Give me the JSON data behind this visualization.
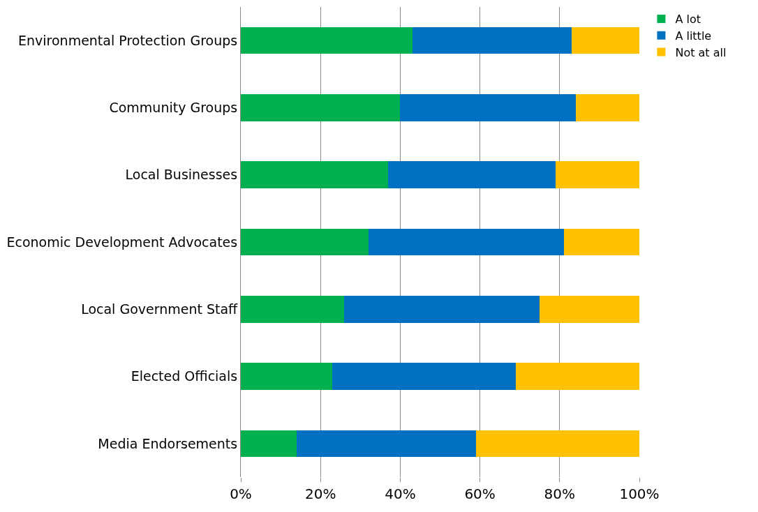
{
  "chart_data": {
    "type": "bar",
    "orientation": "horizontal",
    "stacked": true,
    "categories": [
      "Environmental Protection Groups",
      "Community Groups",
      "Local Businesses",
      "Economic Development Advocates",
      "Local Government Staff",
      "Elected Officials",
      "Media Endorsements"
    ],
    "series": [
      {
        "name": "A lot",
        "color": "#00b050",
        "values": [
          43,
          40,
          37,
          32,
          26,
          23,
          14
        ]
      },
      {
        "name": "A little",
        "color": "#0070c0",
        "values": [
          40,
          44,
          42,
          49,
          49,
          46,
          45
        ]
      },
      {
        "name": "Not at all",
        "color": "#ffc000",
        "values": [
          17,
          16,
          21,
          19,
          25,
          31,
          41
        ]
      }
    ],
    "xlim": [
      0,
      100
    ],
    "xticks": [
      {
        "value": 0,
        "label": "0%"
      },
      {
        "value": 20,
        "label": "20%"
      },
      {
        "value": 40,
        "label": "40%"
      },
      {
        "value": 60,
        "label": "60%"
      },
      {
        "value": 80,
        "label": "80%"
      },
      {
        "value": 100,
        "label": "100%"
      }
    ],
    "grid": "x",
    "legend": "top right"
  }
}
